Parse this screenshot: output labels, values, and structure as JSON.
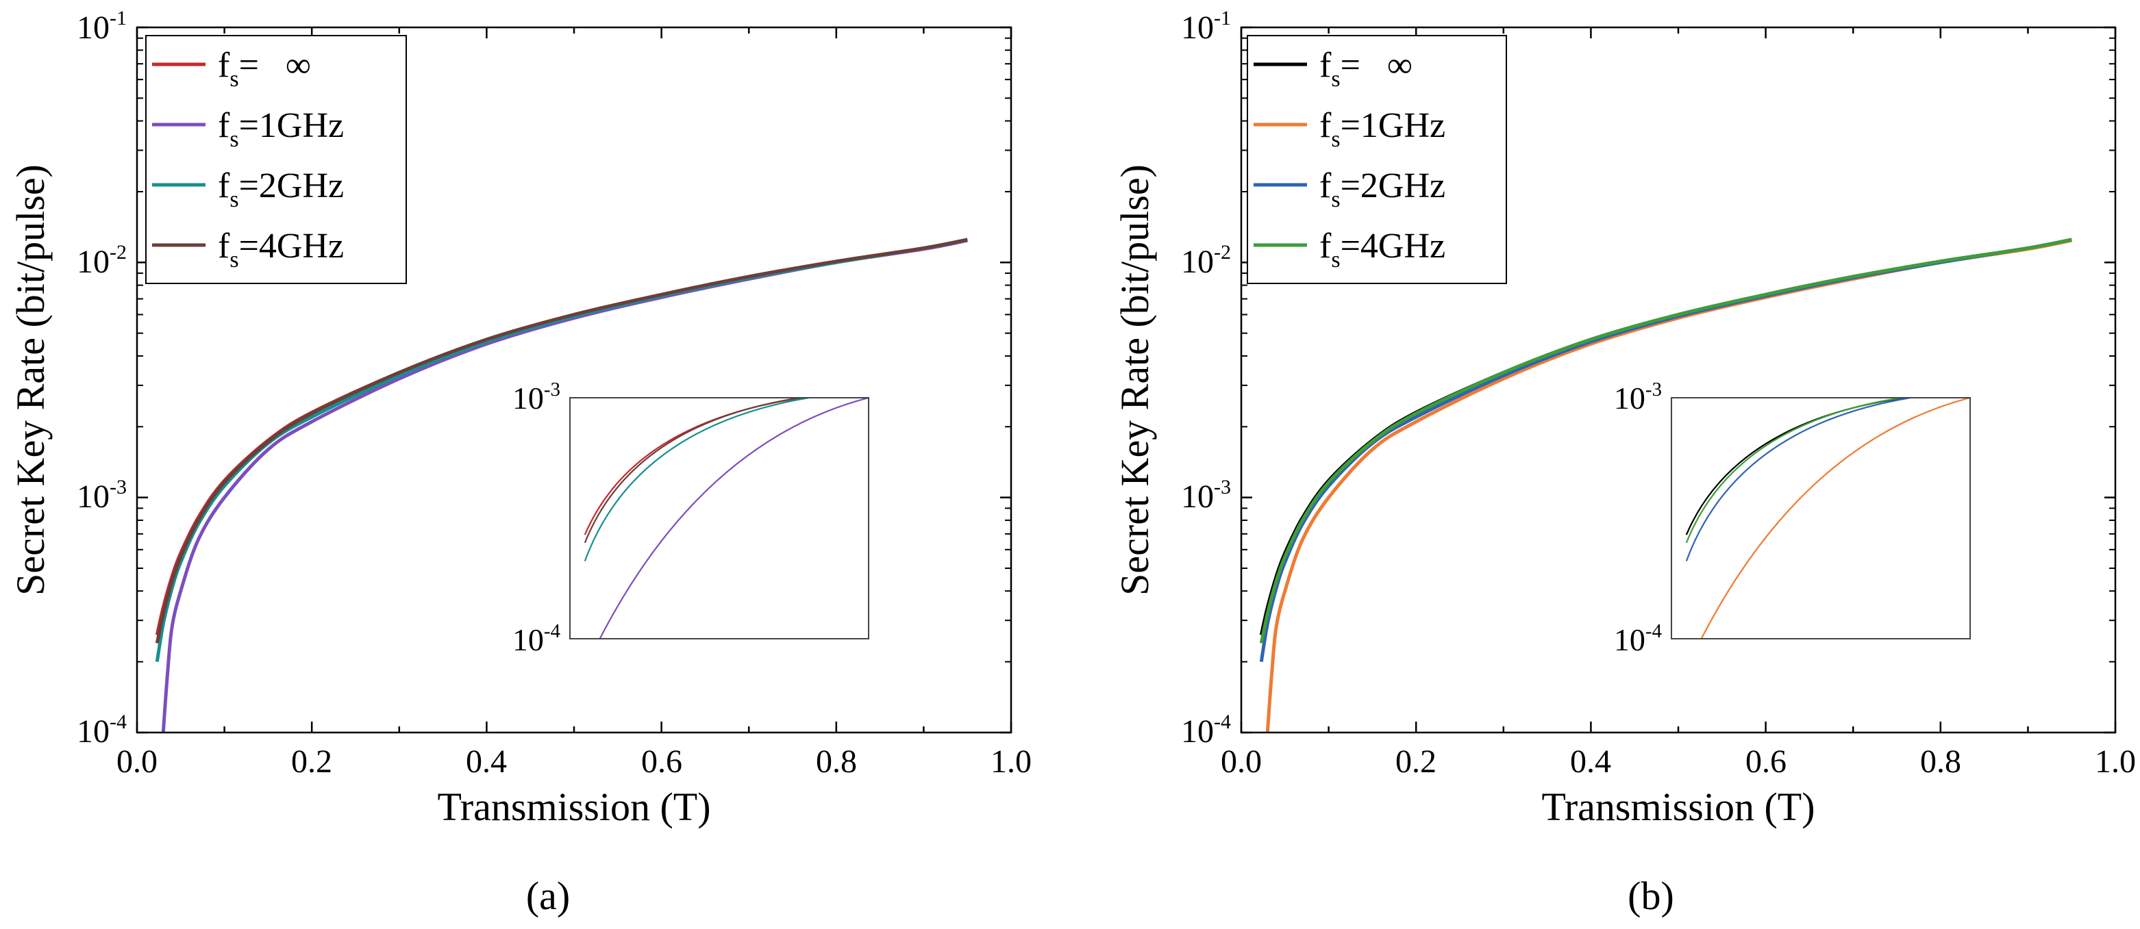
{
  "figure": {
    "background": "#ffffff"
  },
  "chart_data": [
    {
      "panel_label": "(a)",
      "type": "line",
      "xlabel": "Transmission (T)",
      "ylabel": "Secret Key Rate (bit/pulse)",
      "x_scale": "linear",
      "y_scale": "log",
      "xlim": [
        0.0,
        1.0
      ],
      "ylim": [
        0.0001,
        0.1
      ],
      "xticks": [
        "0.0",
        "0.2",
        "0.4",
        "0.6",
        "0.8",
        "1.0"
      ],
      "ytick_mantissa": "10",
      "ytick_exponents": [
        "-4",
        "-3",
        "-2",
        "-1"
      ],
      "legend_position": "top-left",
      "series": [
        {
          "name_main": "f",
          "name_sub": "s",
          "name_rest": "=   ∞",
          "color": "#c8282d",
          "x": [
            0.023,
            0.03,
            0.04,
            0.05,
            0.07,
            0.1,
            0.15,
            0.2,
            0.3,
            0.4,
            0.5,
            0.6,
            0.7,
            0.8,
            0.9,
            0.95
          ],
          "y": [
            0.00026,
            0.00034,
            0.00046,
            0.00058,
            0.00082,
            0.00118,
            0.00175,
            0.0023,
            0.0034,
            0.0047,
            0.006,
            0.0073,
            0.0087,
            0.0101,
            0.0115,
            0.0125
          ]
        },
        {
          "name_main": "f",
          "name_sub": "s",
          "name_rest": "=1GHz",
          "color": "#7b4fbe",
          "x": [
            0.03,
            0.035,
            0.04,
            0.05,
            0.07,
            0.1,
            0.15,
            0.2,
            0.3,
            0.4,
            0.5,
            0.6,
            0.7,
            0.8,
            0.9,
            0.95
          ],
          "y": [
            0.0001,
            0.00018,
            0.00028,
            0.0004,
            0.00066,
            0.001,
            0.0016,
            0.0021,
            0.0032,
            0.0045,
            0.0058,
            0.0071,
            0.0085,
            0.01,
            0.0114,
            0.0124
          ]
        },
        {
          "name_main": "f",
          "name_sub": "s",
          "name_rest": "=2GHz",
          "color": "#168f8f",
          "x": [
            0.023,
            0.03,
            0.04,
            0.05,
            0.07,
            0.1,
            0.15,
            0.2,
            0.3,
            0.4,
            0.5,
            0.6,
            0.7,
            0.8,
            0.9,
            0.95
          ],
          "y": [
            0.0002,
            0.00029,
            0.00041,
            0.00053,
            0.00077,
            0.00112,
            0.0017,
            0.0022,
            0.0033,
            0.0046,
            0.0059,
            0.0072,
            0.0086,
            0.01,
            0.0115,
            0.0125
          ]
        },
        {
          "name_main": "f",
          "name_sub": "s",
          "name_rest": "=4GHz",
          "color": "#6b3f3a",
          "x": [
            0.023,
            0.03,
            0.04,
            0.05,
            0.07,
            0.1,
            0.15,
            0.2,
            0.3,
            0.4,
            0.5,
            0.6,
            0.7,
            0.8,
            0.9,
            0.95
          ],
          "y": [
            0.00024,
            0.00032,
            0.00044,
            0.00056,
            0.0008,
            0.00116,
            0.00173,
            0.00228,
            0.0034,
            0.0047,
            0.006,
            0.0073,
            0.0087,
            0.0101,
            0.0115,
            0.0125
          ]
        }
      ],
      "inset": {
        "y_scale": "log",
        "ylim": [
          0.0001,
          0.001
        ],
        "ytick_mantissa": "10",
        "ytick_exponents": [
          "-4",
          "-3"
        ],
        "series": [
          {
            "color": "#c8282d",
            "x0": 0.05,
            "y0": 0.00027,
            "x1": 0.78,
            "y1": 0.001,
            "sag": 0.22
          },
          {
            "color": "#6b3f3a",
            "x0": 0.05,
            "y0": 0.00025,
            "x1": 0.77,
            "y1": 0.001,
            "sag": 0.22
          },
          {
            "color": "#168f8f",
            "x0": 0.05,
            "y0": 0.00021,
            "x1": 0.8,
            "y1": 0.001,
            "sag": 0.22
          },
          {
            "color": "#7b4fbe",
            "x0": 0.1,
            "y0": 0.0001,
            "x1": 1.0,
            "y1": 0.001,
            "sag": 0.38
          }
        ]
      }
    },
    {
      "panel_label": "(b)",
      "type": "line",
      "xlabel": "Transmission (T)",
      "ylabel": "Secret Key Rate (bit/pulse)",
      "x_scale": "linear",
      "y_scale": "log",
      "xlim": [
        0.0,
        1.0
      ],
      "ylim": [
        0.0001,
        0.1
      ],
      "xticks": [
        "0.0",
        "0.2",
        "0.4",
        "0.6",
        "0.8",
        "1.0"
      ],
      "ytick_mantissa": "10",
      "ytick_exponents": [
        "-4",
        "-3",
        "-2",
        "-1"
      ],
      "legend_position": "top-left",
      "series": [
        {
          "name_main": "f",
          "name_sub": "s",
          "name_rest": "=   ∞",
          "color": "#000000",
          "x": [
            0.023,
            0.03,
            0.04,
            0.05,
            0.07,
            0.1,
            0.15,
            0.2,
            0.3,
            0.4,
            0.5,
            0.6,
            0.7,
            0.8,
            0.9,
            0.95
          ],
          "y": [
            0.00026,
            0.00034,
            0.00046,
            0.00058,
            0.00082,
            0.00118,
            0.00175,
            0.0023,
            0.0034,
            0.0047,
            0.006,
            0.0073,
            0.0087,
            0.0101,
            0.0115,
            0.0125
          ]
        },
        {
          "name_main": "f",
          "name_sub": "s",
          "name_rest": "=1GHz",
          "color": "#f07a34",
          "x": [
            0.03,
            0.035,
            0.04,
            0.05,
            0.07,
            0.1,
            0.15,
            0.2,
            0.3,
            0.4,
            0.5,
            0.6,
            0.7,
            0.8,
            0.9,
            0.95
          ],
          "y": [
            0.0001,
            0.00018,
            0.00028,
            0.0004,
            0.00066,
            0.001,
            0.0016,
            0.0021,
            0.0032,
            0.0045,
            0.0058,
            0.0071,
            0.0085,
            0.01,
            0.0114,
            0.0124
          ]
        },
        {
          "name_main": "f",
          "name_sub": "s",
          "name_rest": "=2GHz",
          "color": "#2f63b5",
          "x": [
            0.023,
            0.03,
            0.04,
            0.05,
            0.07,
            0.1,
            0.15,
            0.2,
            0.3,
            0.4,
            0.5,
            0.6,
            0.7,
            0.8,
            0.9,
            0.95
          ],
          "y": [
            0.0002,
            0.00029,
            0.00041,
            0.00053,
            0.00077,
            0.00112,
            0.0017,
            0.0022,
            0.0033,
            0.0046,
            0.0059,
            0.0072,
            0.0086,
            0.01,
            0.0115,
            0.0125
          ]
        },
        {
          "name_main": "f",
          "name_sub": "s",
          "name_rest": "=4GHz",
          "color": "#3e9e3a",
          "x": [
            0.023,
            0.03,
            0.04,
            0.05,
            0.07,
            0.1,
            0.15,
            0.2,
            0.3,
            0.4,
            0.5,
            0.6,
            0.7,
            0.8,
            0.9,
            0.95
          ],
          "y": [
            0.00024,
            0.00032,
            0.00044,
            0.00056,
            0.0008,
            0.00116,
            0.00173,
            0.00228,
            0.0034,
            0.0047,
            0.006,
            0.0073,
            0.0087,
            0.0101,
            0.0115,
            0.0125
          ]
        }
      ],
      "inset": {
        "y_scale": "log",
        "ylim": [
          0.0001,
          0.001
        ],
        "ytick_mantissa": "10",
        "ytick_exponents": [
          "-4",
          "-3"
        ],
        "series": [
          {
            "color": "#000000",
            "x0": 0.05,
            "y0": 0.00027,
            "x1": 0.78,
            "y1": 0.001,
            "sag": 0.22
          },
          {
            "color": "#3e9e3a",
            "x0": 0.05,
            "y0": 0.00025,
            "x1": 0.77,
            "y1": 0.001,
            "sag": 0.22
          },
          {
            "color": "#2f63b5",
            "x0": 0.05,
            "y0": 0.00021,
            "x1": 0.8,
            "y1": 0.001,
            "sag": 0.22
          },
          {
            "color": "#f07a34",
            "x0": 0.1,
            "y0": 0.0001,
            "x1": 1.0,
            "y1": 0.001,
            "sag": 0.38
          }
        ]
      }
    }
  ]
}
